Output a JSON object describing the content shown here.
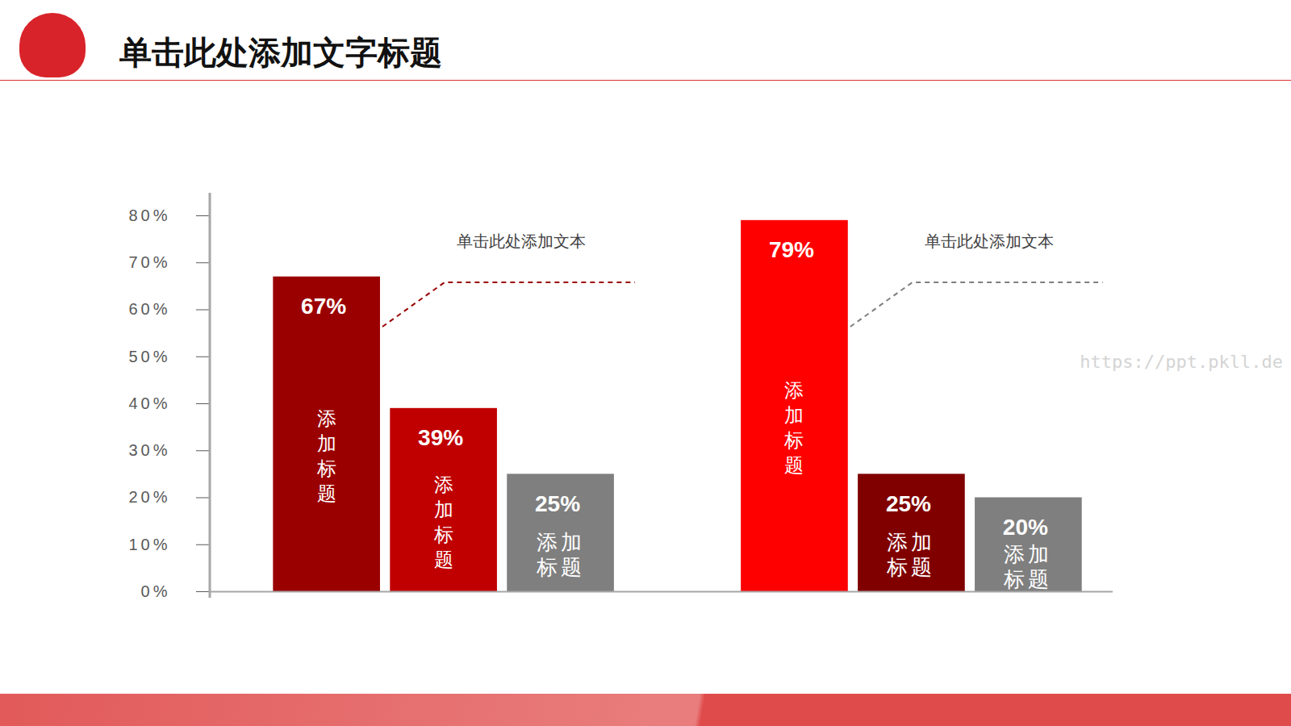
{
  "chart_data": {
    "type": "bar",
    "title": "单击此处添加文字标题",
    "categories": [
      "添加标题",
      "添加标题",
      "添加标题",
      "添加标题",
      "添加标题",
      "添加标题"
    ],
    "values": [
      67,
      39,
      25,
      79,
      25,
      20
    ],
    "value_labels": [
      "67%",
      "39%",
      "25%",
      "79%",
      "25%",
      "20%"
    ],
    "colors": [
      "#9b0000",
      "#c00000",
      "#7f7f7f",
      "#ff0000",
      "#800000",
      "#7f7f7f"
    ],
    "ylim": [
      0,
      80
    ],
    "yticks": [
      {
        "value": 0,
        "label": "0%"
      },
      {
        "value": 10,
        "label": "10%"
      },
      {
        "value": 20,
        "label": "20%"
      },
      {
        "value": 30,
        "label": "30%"
      },
      {
        "value": 40,
        "label": "40%"
      },
      {
        "value": 50,
        "label": "50%"
      },
      {
        "value": 60,
        "label": "60%"
      },
      {
        "value": 70,
        "label": "70%"
      },
      {
        "value": 80,
        "label": "80%"
      }
    ],
    "grid": false,
    "data_labels": true,
    "tick_labels": "y",
    "annotations": [
      "单击此处添加文本",
      "单击此处添加文本"
    ],
    "watermark": "https://ppt.pkll.de"
  }
}
